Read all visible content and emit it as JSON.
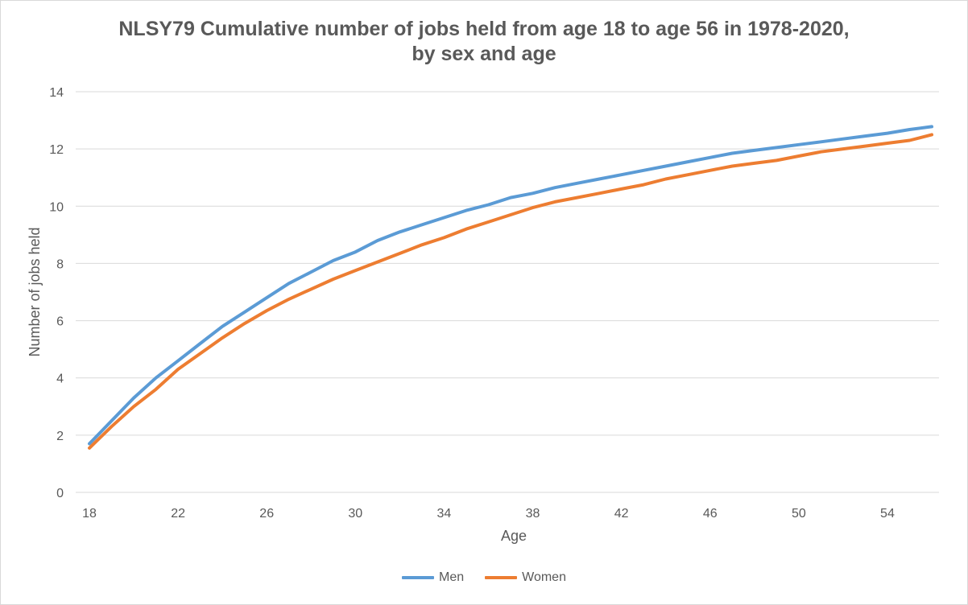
{
  "chart_data": {
    "type": "line",
    "title_lines": [
      "NLSY79 Cumulative number of jobs held from age 18 to age 56 in 1978-2020,",
      "by sex and age"
    ],
    "xlabel": "Age",
    "ylabel": "Number of jobs held",
    "xlim": [
      18,
      56
    ],
    "ylim": [
      0,
      14
    ],
    "x_ticks": [
      "18",
      "22",
      "26",
      "30",
      "34",
      "38",
      "42",
      "46",
      "50",
      "54"
    ],
    "y_ticks": [
      "0",
      "2",
      "4",
      "6",
      "8",
      "10",
      "12",
      "14"
    ],
    "grid": true,
    "legend_position": "bottom",
    "x": [
      18,
      19,
      20,
      21,
      22,
      23,
      24,
      25,
      26,
      27,
      28,
      29,
      30,
      31,
      32,
      33,
      34,
      35,
      36,
      37,
      38,
      39,
      40,
      41,
      42,
      43,
      44,
      45,
      46,
      47,
      48,
      49,
      50,
      51,
      52,
      53,
      54,
      55,
      56
    ],
    "series": [
      {
        "name": "Men",
        "color": "#5b9bd5",
        "values": [
          1.7,
          2.5,
          3.3,
          4.0,
          4.6,
          5.2,
          5.8,
          6.3,
          6.8,
          7.3,
          7.7,
          8.1,
          8.4,
          8.8,
          9.1,
          9.35,
          9.6,
          9.85,
          10.05,
          10.3,
          10.45,
          10.65,
          10.8,
          10.95,
          11.1,
          11.25,
          11.4,
          11.55,
          11.7,
          11.85,
          11.95,
          12.05,
          12.15,
          12.25,
          12.35,
          12.45,
          12.55,
          12.68,
          12.78
        ]
      },
      {
        "name": "Women",
        "color": "#ed7d31",
        "values": [
          1.55,
          2.3,
          3.0,
          3.6,
          4.3,
          4.85,
          5.4,
          5.9,
          6.35,
          6.75,
          7.1,
          7.45,
          7.75,
          8.05,
          8.35,
          8.65,
          8.9,
          9.2,
          9.45,
          9.7,
          9.95,
          10.15,
          10.3,
          10.45,
          10.6,
          10.75,
          10.95,
          11.1,
          11.25,
          11.4,
          11.5,
          11.6,
          11.75,
          11.9,
          12.0,
          12.1,
          12.2,
          12.3,
          12.5
        ]
      }
    ]
  }
}
